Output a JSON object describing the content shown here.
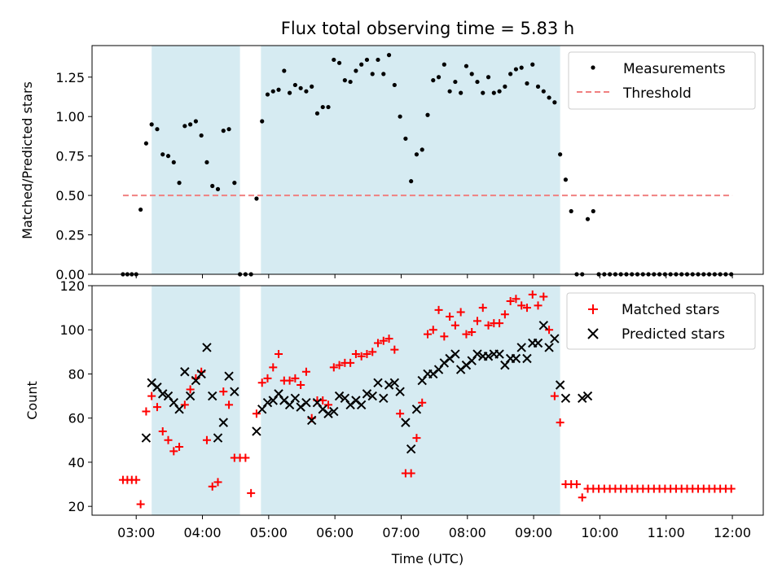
{
  "chart_data": [
    {
      "type": "scatter",
      "title": "Flux total observing time = 5.83 h",
      "xlabel": "",
      "ylabel": "Matched/Predicted stars",
      "xlim": [
        "02:20",
        "12:28"
      ],
      "ylim": [
        0,
        1.45
      ],
      "yticks": [
        0,
        0.25,
        0.5,
        0.75,
        1.0,
        1.25
      ],
      "ytick_labels": [
        "0.00",
        "0.25",
        "0.50",
        "0.75",
        "1.00",
        "1.25"
      ],
      "xticks": [
        "03:00",
        "04:00",
        "05:00",
        "06:00",
        "07:00",
        "08:00",
        "09:00",
        "10:00",
        "11:00",
        "12:00"
      ],
      "show_xtick_labels": false,
      "legend": {
        "position": "top-right"
      },
      "shaded_intervals": [
        [
          "03:14",
          "04:34"
        ],
        [
          "04:53",
          "09:24"
        ]
      ],
      "series": [
        {
          "name": "Measurements",
          "marker": "dot",
          "color": "#000000",
          "x": [
            "02:48",
            "02:52",
            "02:56",
            "03:00",
            "03:04",
            "03:09",
            "03:14",
            "03:19",
            "03:24",
            "03:29",
            "03:34",
            "03:39",
            "03:44",
            "03:49",
            "03:54",
            "03:59",
            "04:04",
            "04:09",
            "04:14",
            "04:19",
            "04:24",
            "04:29",
            "04:34",
            "04:39",
            "04:44",
            "04:49",
            "04:54",
            "04:59",
            "05:04",
            "05:09",
            "05:14",
            "05:19",
            "05:24",
            "05:29",
            "05:34",
            "05:39",
            "05:44",
            "05:49",
            "05:54",
            "05:59",
            "06:04",
            "06:09",
            "06:14",
            "06:19",
            "06:24",
            "06:29",
            "06:34",
            "06:39",
            "06:44",
            "06:49",
            "06:54",
            "06:59",
            "07:04",
            "07:09",
            "07:14",
            "07:19",
            "07:24",
            "07:29",
            "07:34",
            "07:39",
            "07:44",
            "07:49",
            "07:54",
            "07:59",
            "08:04",
            "08:09",
            "08:14",
            "08:19",
            "08:24",
            "08:29",
            "08:34",
            "08:39",
            "08:44",
            "08:49",
            "08:54",
            "08:59",
            "09:04",
            "09:09",
            "09:14",
            "09:19",
            "09:24",
            "09:29",
            "09:34",
            "09:39",
            "09:44",
            "09:49",
            "09:54",
            "09:59",
            "10:04",
            "10:09",
            "10:14",
            "10:19",
            "10:24",
            "10:29",
            "10:34",
            "10:39",
            "10:44",
            "10:49",
            "10:54",
            "10:59",
            "11:04",
            "11:09",
            "11:14",
            "11:19",
            "11:24",
            "11:29",
            "11:34",
            "11:39",
            "11:44",
            "11:49",
            "11:54",
            "11:59"
          ],
          "y": [
            0,
            0,
            0,
            0,
            0.41,
            0.83,
            0.95,
            0.92,
            0.76,
            0.75,
            0.71,
            0.58,
            0.94,
            0.95,
            0.97,
            0.88,
            0.71,
            0.56,
            0.54,
            0.91,
            0.92,
            0.58,
            0,
            0,
            0,
            0.48,
            0.97,
            1.14,
            1.16,
            1.17,
            1.29,
            1.15,
            1.2,
            1.18,
            1.16,
            1.19,
            1.02,
            1.06,
            1.06,
            1.36,
            1.34,
            1.23,
            1.22,
            1.29,
            1.33,
            1.36,
            1.27,
            1.36,
            1.27,
            1.39,
            1.2,
            1.0,
            0.86,
            0.59,
            0.76,
            0.79,
            1.01,
            1.23,
            1.25,
            1.33,
            1.16,
            1.22,
            1.15,
            1.32,
            1.27,
            1.22,
            1.15,
            1.25,
            1.15,
            1.16,
            1.19,
            1.27,
            1.3,
            1.31,
            1.21,
            1.33,
            1.19,
            1.16,
            1.12,
            1.09,
            0.76,
            0.6,
            0.4,
            0,
            0,
            0.35,
            0.4,
            0,
            0,
            0,
            0,
            0,
            0,
            0,
            0,
            0,
            0,
            0,
            0,
            0,
            0,
            0,
            0,
            0,
            0,
            0,
            0,
            0,
            0,
            0,
            0,
            0
          ]
        },
        {
          "name": "Threshold",
          "marker": "dashed-line",
          "color": "#f08080",
          "x": [
            "02:48",
            "12:00"
          ],
          "y": [
            0.5,
            0.5
          ]
        }
      ]
    },
    {
      "type": "scatter",
      "title": "",
      "xlabel": "Time (UTC)",
      "ylabel": "Count",
      "xlim": [
        "02:20",
        "12:28"
      ],
      "ylim": [
        16,
        120
      ],
      "yticks": [
        20,
        40,
        60,
        80,
        100,
        120
      ],
      "ytick_labels": [
        "20",
        "40",
        "60",
        "80",
        "100",
        "120"
      ],
      "xticks": [
        "03:00",
        "04:00",
        "05:00",
        "06:00",
        "07:00",
        "08:00",
        "09:00",
        "10:00",
        "11:00",
        "12:00"
      ],
      "show_xtick_labels": true,
      "legend": {
        "position": "top-right"
      },
      "shaded_intervals": [
        [
          "03:14",
          "04:34"
        ],
        [
          "04:53",
          "09:24"
        ]
      ],
      "series": [
        {
          "name": "Matched stars",
          "marker": "plus",
          "color": "#ff0000",
          "x": [
            "02:48",
            "02:52",
            "02:56",
            "03:00",
            "03:04",
            "03:09",
            "03:14",
            "03:19",
            "03:24",
            "03:29",
            "03:34",
            "03:39",
            "03:44",
            "03:49",
            "03:54",
            "03:59",
            "04:04",
            "04:09",
            "04:14",
            "04:19",
            "04:24",
            "04:29",
            "04:34",
            "04:39",
            "04:44",
            "04:49",
            "04:54",
            "04:59",
            "05:04",
            "05:09",
            "05:14",
            "05:19",
            "05:24",
            "05:29",
            "05:34",
            "05:39",
            "05:44",
            "05:49",
            "05:54",
            "05:59",
            "06:04",
            "06:09",
            "06:14",
            "06:19",
            "06:24",
            "06:29",
            "06:34",
            "06:39",
            "06:44",
            "06:49",
            "06:54",
            "06:59",
            "07:04",
            "07:09",
            "07:14",
            "07:19",
            "07:24",
            "07:29",
            "07:34",
            "07:39",
            "07:44",
            "07:49",
            "07:54",
            "07:59",
            "08:04",
            "08:09",
            "08:14",
            "08:19",
            "08:24",
            "08:29",
            "08:34",
            "08:39",
            "08:44",
            "08:49",
            "08:54",
            "08:59",
            "09:04",
            "09:09",
            "09:14",
            "09:19",
            "09:24",
            "09:29",
            "09:34",
            "09:39",
            "09:44",
            "09:49",
            "09:54",
            "09:59",
            "10:04",
            "10:09",
            "10:14",
            "10:19",
            "10:24",
            "10:29",
            "10:34",
            "10:39",
            "10:44",
            "10:49",
            "10:54",
            "10:59",
            "11:04",
            "11:09",
            "11:14",
            "11:19",
            "11:24",
            "11:29",
            "11:34",
            "11:39",
            "11:44",
            "11:49",
            "11:54",
            "11:59"
          ],
          "y": [
            32,
            32,
            32,
            32,
            21,
            63,
            70,
            65,
            54,
            50,
            45,
            47,
            66,
            73,
            78,
            81,
            50,
            29,
            31,
            72,
            66,
            42,
            42,
            42,
            26,
            62,
            76,
            78,
            83,
            89,
            77,
            77,
            78,
            75,
            81,
            60,
            68,
            68,
            66,
            83,
            84,
            85,
            85,
            89,
            88,
            89,
            90,
            94,
            95,
            96,
            91,
            62,
            35,
            35,
            51,
            67,
            98,
            100,
            109,
            97,
            106,
            102,
            108,
            98,
            99,
            104,
            110,
            102,
            103,
            103,
            107,
            113,
            114,
            111,
            110,
            116,
            111,
            115,
            100,
            70,
            58,
            30,
            30,
            30,
            24,
            28,
            28,
            28,
            28,
            28,
            28,
            28,
            28,
            28,
            28,
            28,
            28,
            28,
            28,
            28,
            28,
            28,
            28,
            28,
            28,
            28,
            28,
            28,
            28,
            28,
            28,
            28
          ]
        },
        {
          "name": "Predicted stars",
          "marker": "x",
          "color": "#000000",
          "x": [
            "03:09",
            "03:14",
            "03:19",
            "03:24",
            "03:29",
            "03:34",
            "03:39",
            "03:44",
            "03:49",
            "03:54",
            "03:59",
            "04:04",
            "04:09",
            "04:14",
            "04:19",
            "04:24",
            "04:29",
            "04:49",
            "04:54",
            "04:59",
            "05:04",
            "05:09",
            "05:14",
            "05:19",
            "05:24",
            "05:29",
            "05:34",
            "05:39",
            "05:44",
            "05:49",
            "05:54",
            "05:59",
            "06:04",
            "06:09",
            "06:14",
            "06:19",
            "06:24",
            "06:29",
            "06:34",
            "06:39",
            "06:44",
            "06:49",
            "06:54",
            "06:59",
            "07:04",
            "07:09",
            "07:14",
            "07:19",
            "07:24",
            "07:29",
            "07:34",
            "07:39",
            "07:44",
            "07:49",
            "07:54",
            "07:59",
            "08:04",
            "08:09",
            "08:14",
            "08:19",
            "08:24",
            "08:29",
            "08:34",
            "08:39",
            "08:44",
            "08:49",
            "08:54",
            "08:59",
            "09:04",
            "09:09",
            "09:14",
            "09:19",
            "09:24",
            "09:29",
            "09:44",
            "09:49"
          ],
          "y": [
            51,
            76,
            74,
            71,
            70,
            67,
            64,
            81,
            70,
            77,
            80,
            92,
            70,
            51,
            58,
            79,
            72,
            54,
            64,
            67,
            68,
            71,
            68,
            66,
            69,
            65,
            67,
            59,
            67,
            64,
            62,
            63,
            70,
            69,
            66,
            68,
            66,
            71,
            70,
            76,
            69,
            75,
            76,
            72,
            58,
            46,
            64,
            77,
            80,
            80,
            82,
            85,
            87,
            89,
            82,
            84,
            86,
            89,
            88,
            88,
            89,
            89,
            84,
            87,
            87,
            92,
            87,
            94,
            94,
            102,
            92,
            96,
            75,
            69,
            69,
            70
          ]
        }
      ]
    }
  ]
}
